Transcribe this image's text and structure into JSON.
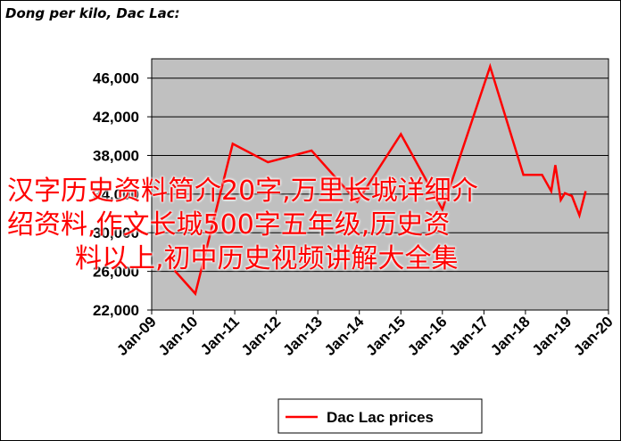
{
  "chart_data": {
    "type": "line",
    "title": "Dong per kilo, Dac Lac:",
    "xlabel": "",
    "ylabel": "",
    "x_ticks": [
      "Jan-09",
      "Jan-10",
      "Jan-11",
      "Jan-12",
      "Jan-13",
      "Jan-14",
      "Jan-15",
      "Jan-16",
      "Jan-17",
      "Jan-18",
      "Jan-19",
      "Jan-20"
    ],
    "y_ticks": [
      "22,000",
      "26,000",
      "30,000",
      "34,000",
      "38,000",
      "42,000",
      "46,000"
    ],
    "ylim": [
      22000,
      48000
    ],
    "xlim": [
      2009.0,
      2020.0
    ],
    "grid": "horizontal",
    "legend_position": "bottom-center",
    "series": [
      {
        "name": "Dac Lac prices",
        "color": "#ff0000",
        "points": [
          [
            2009.55,
            26100
          ],
          [
            2010.05,
            23700
          ],
          [
            2010.95,
            39200
          ],
          [
            2011.8,
            37300
          ],
          [
            2012.85,
            38500
          ],
          [
            2013.95,
            33200
          ],
          [
            2015.0,
            40200
          ],
          [
            2016.0,
            32400
          ],
          [
            2017.15,
            47200
          ],
          [
            2017.95,
            36000
          ],
          [
            2018.4,
            36000
          ],
          [
            2018.62,
            34300
          ],
          [
            2018.72,
            37000
          ],
          [
            2018.85,
            33400
          ],
          [
            2018.95,
            34100
          ],
          [
            2019.12,
            33800
          ],
          [
            2019.3,
            31800
          ],
          [
            2019.45,
            34300
          ]
        ]
      }
    ]
  },
  "overlay": {
    "line1": "汉字历史资料简介20字,万里长城详细介",
    "line2": "绍资料,作文长城500字五年级,历史资",
    "line3": "料以上,初中历史视频讲解大全集"
  }
}
